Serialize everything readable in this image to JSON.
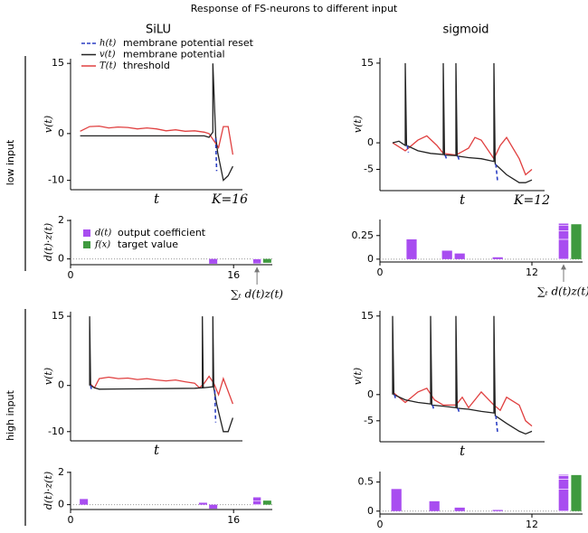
{
  "title": "Response of FS-neurons to different input",
  "column_titles": [
    "SiLU",
    "sigmoid"
  ],
  "row_titles": [
    "low input",
    "high input"
  ],
  "chart_data": [
    {
      "type": "line",
      "ylabel": "v(t)",
      "xlabel": "t",
      "annotation": "K=16",
      "xlim": [
        -1,
        17
      ],
      "ylim": [
        -12,
        16
      ],
      "yticks": [
        -10,
        0,
        15
      ],
      "legend": "upper left",
      "series": [
        {
          "name": "h(t)",
          "label": "membrane potential reset",
          "color": "#2b3fc4",
          "dashed": true,
          "x": [
            14.2,
            14.3
          ],
          "values": [
            -1,
            -8
          ]
        },
        {
          "name": "v(t)",
          "label": "membrane potential",
          "color": "#222222",
          "x": [
            0,
            13,
            13.5,
            13.9,
            13.9,
            14.2,
            14.4,
            15,
            15.5,
            16
          ],
          "values": [
            -0.5,
            -0.5,
            -0.8,
            0.3,
            15,
            -0.5,
            -4,
            -10,
            -9,
            -7
          ]
        },
        {
          "name": "T(t)",
          "label": "threshold",
          "color": "#e04040",
          "x": [
            0,
            1,
            2,
            3,
            4,
            5,
            6,
            7,
            8,
            9,
            10,
            11,
            12,
            13,
            13.5,
            14,
            14.5,
            15,
            15.5,
            16
          ],
          "values": [
            0.5,
            1.5,
            1.6,
            1.2,
            1.4,
            1.3,
            1.0,
            1.2,
            1.0,
            0.6,
            0.8,
            0.5,
            0.6,
            0.3,
            0.0,
            -1.5,
            -3,
            1.5,
            1.5,
            -4.5
          ]
        }
      ]
    },
    {
      "type": "line",
      "ylabel": "v(t)",
      "xlabel": "t",
      "annotation": "K=12",
      "xlim": [
        0,
        13
      ],
      "ylim": [
        -9,
        16
      ],
      "yticks": [
        -5,
        0,
        15
      ],
      "series": [
        {
          "name": "h(t)",
          "color": "#2b3fc4",
          "dashed": true,
          "x": [
            2.15,
            2.25,
            null,
            5.15,
            5.25,
            null,
            6.15,
            6.25,
            null,
            9.15,
            9.3
          ],
          "values": [
            -0.5,
            -1.8,
            null,
            -2.3,
            -3,
            null,
            -2.5,
            -3.2,
            null,
            -4,
            -7.5
          ]
        },
        {
          "name": "v(t)",
          "color": "#222222",
          "x": [
            1,
            1.5,
            2,
            2,
            2.1,
            3,
            4,
            5,
            5,
            5.1,
            6,
            6,
            6.1,
            7,
            8,
            9,
            9,
            9.1,
            10,
            11,
            11.5,
            12
          ],
          "values": [
            0,
            0.3,
            -0.5,
            15,
            -0.5,
            -1.5,
            -2,
            -2.2,
            15,
            -2.3,
            -2.4,
            15,
            -2.5,
            -2.8,
            -3,
            -3.5,
            15,
            -4,
            -6,
            -7.5,
            -7.5,
            -7
          ]
        },
        {
          "name": "T(t)",
          "color": "#e04040",
          "x": [
            1,
            2,
            3,
            3.7,
            4.5,
            5,
            6,
            7,
            7.5,
            8,
            9,
            9.5,
            10,
            11,
            11.5,
            12
          ],
          "values": [
            0,
            -1.5,
            0.5,
            1.3,
            -0.5,
            -2,
            -2.3,
            -1,
            1,
            0.5,
            -3,
            -0.5,
            1,
            -3,
            -6,
            -5
          ]
        }
      ]
    },
    {
      "type": "bar",
      "ylabel": "d(t)·z(t)",
      "annotation": "∑ₜ d(t)z(t)",
      "xlim": [
        0,
        19.8
      ],
      "ylim": [
        -0.3,
        2.05
      ],
      "xticks": [
        0,
        16
      ],
      "yticks": [
        0,
        2
      ],
      "legend": "upper left",
      "series": [
        {
          "name": "d(t)",
          "label": "output coefficient",
          "color": "#a84df0",
          "x": [
            14
          ],
          "values": [
            -0.25
          ]
        },
        {
          "name": "f(x)",
          "label": "target value",
          "color": "#3f9a3f",
          "values": [
            -0.2
          ]
        }
      ]
    },
    {
      "type": "bar",
      "ylabel": "",
      "annotation": "∑ₜ d(t)z(t)",
      "xlim": [
        0,
        16
      ],
      "ylim": [
        -0.03,
        0.42
      ],
      "xticks": [
        0,
        12
      ],
      "yticks": [
        0,
        0.25
      ],
      "series": [
        {
          "name": "d(t)",
          "color": "#a84df0",
          "x": [
            2.5,
            5.3,
            6.3,
            9.3
          ],
          "values": [
            0.21,
            0.09,
            0.06,
            0.02
          ]
        },
        {
          "name": "f(x)",
          "color": "#3f9a3f",
          "values": [
            0.37
          ]
        }
      ]
    },
    {
      "type": "line",
      "ylabel": "v(t)",
      "xlabel": "t",
      "xlim": [
        -1,
        17
      ],
      "ylim": [
        -12,
        16
      ],
      "yticks": [
        -10,
        0,
        15
      ],
      "series": [
        {
          "name": "h(t)",
          "color": "#2b3fc4",
          "dashed": true,
          "x": [
            1.1,
            1.2,
            null,
            14.1,
            14.2
          ],
          "values": [
            0,
            -1,
            null,
            -1,
            -8
          ]
        },
        {
          "name": "v(t)",
          "color": "#222222",
          "x": [
            1,
            1,
            1.1,
            1.5,
            2,
            12,
            12.8,
            12.8,
            12.9,
            13.9,
            13.9,
            14,
            14.3,
            15,
            15.5,
            16
          ],
          "values": [
            0,
            15,
            0,
            -0.5,
            -0.8,
            -0.6,
            -0.5,
            15,
            -0.5,
            -0.3,
            15,
            -0.5,
            -4,
            -10,
            -10,
            -7
          ]
        },
        {
          "name": "T(t)",
          "color": "#e04040",
          "x": [
            1,
            1.5,
            2,
            3,
            4,
            5,
            6,
            7,
            8,
            9,
            10,
            11,
            12,
            12.5,
            13,
            13.5,
            14,
            14.5,
            15,
            16
          ],
          "values": [
            0.5,
            -0.5,
            1.5,
            1.8,
            1.5,
            1.6,
            1.3,
            1.5,
            1.2,
            1.0,
            1.2,
            0.8,
            0.5,
            -0.5,
            0.5,
            2,
            0.5,
            -2,
            1.5,
            -4
          ]
        }
      ]
    },
    {
      "type": "line",
      "ylabel": "v(t)",
      "xlabel": "t",
      "xlim": [
        0,
        13
      ],
      "ylim": [
        -9,
        16
      ],
      "yticks": [
        -5,
        0,
        15
      ],
      "series": [
        {
          "name": "h(t)",
          "color": "#2b3fc4",
          "dashed": true,
          "x": [
            1.15,
            1.25,
            null,
            4.15,
            4.25,
            null,
            6.15,
            6.25,
            null,
            9.15,
            9.3
          ],
          "values": [
            0,
            -1,
            null,
            -2,
            -2.8,
            null,
            -2.6,
            -3.3,
            null,
            -4,
            -7.5
          ]
        },
        {
          "name": "v(t)",
          "color": "#222222",
          "x": [
            1,
            1,
            1.1,
            2,
            3,
            4,
            4,
            4.1,
            5,
            6,
            6,
            6.1,
            7,
            8,
            9,
            9,
            9.1,
            10,
            11,
            11.5,
            12
          ],
          "values": [
            0,
            15,
            0,
            -1,
            -1.5,
            -1.8,
            15,
            -2,
            -2.2,
            -2.5,
            15,
            -2.6,
            -2.8,
            -3.2,
            -3.5,
            15,
            -4,
            -5.5,
            -7,
            -7.5,
            -7
          ]
        },
        {
          "name": "T(t)",
          "color": "#e04040",
          "x": [
            1,
            2,
            3,
            3.7,
            4.3,
            5,
            6,
            6.5,
            7,
            7.5,
            8,
            9,
            9.5,
            10,
            11,
            11.5,
            12
          ],
          "values": [
            0.5,
            -1.5,
            0.5,
            1.2,
            -1,
            -2,
            -2,
            -0.5,
            -2.5,
            -1,
            0.5,
            -2,
            -3,
            -0.5,
            -2,
            -5,
            -6
          ]
        }
      ]
    },
    {
      "type": "bar",
      "ylabel": "d(t)·z(t)",
      "xlim": [
        0,
        19.8
      ],
      "ylim": [
        -0.3,
        2.05
      ],
      "xticks": [
        0,
        16
      ],
      "yticks": [
        0,
        2
      ],
      "series": [
        {
          "name": "d(t)",
          "color": "#a84df0",
          "x": [
            1.3,
            13,
            14
          ],
          "values": [
            0.35,
            0.12,
            -0.25
          ]
        },
        {
          "name": "f(x)",
          "color": "#3f9a3f",
          "values": [
            0.25
          ]
        }
      ]
    },
    {
      "type": "bar",
      "ylabel": "",
      "xlim": [
        0,
        16
      ],
      "ylim": [
        -0.05,
        0.68
      ],
      "xticks": [
        0,
        12
      ],
      "yticks": [
        0,
        0.5
      ],
      "series": [
        {
          "name": "d(t)",
          "color": "#a84df0",
          "x": [
            1.3,
            4.3,
            6.3,
            9.3
          ],
          "values": [
            0.38,
            0.17,
            0.06,
            0.02
          ]
        },
        {
          "name": "f(x)",
          "color": "#3f9a3f",
          "values": [
            0.62
          ]
        }
      ]
    }
  ]
}
